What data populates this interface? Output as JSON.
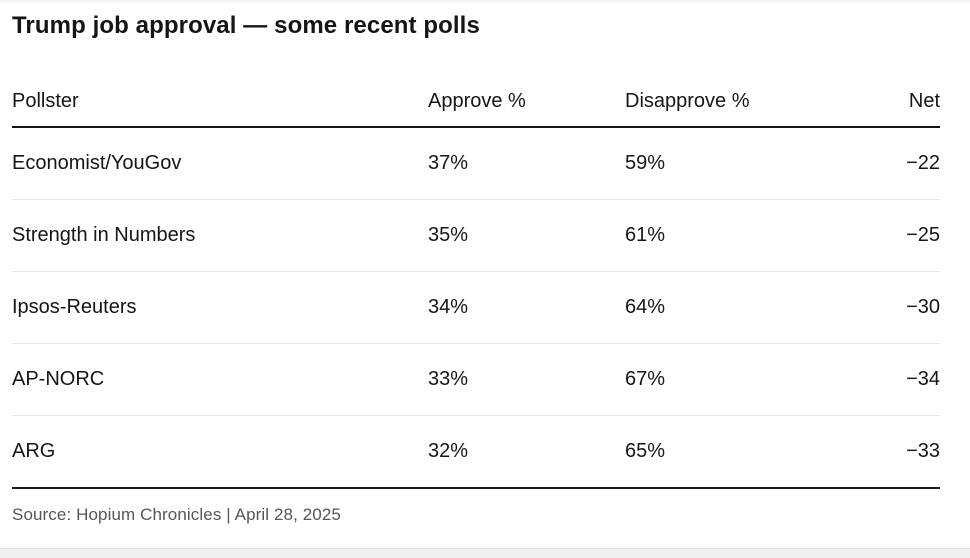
{
  "page": {
    "title": "Trump job approval — some recent polls",
    "source": "Source: Hopium Chronicles | April 28, 2025"
  },
  "table": {
    "columns": [
      "Pollster",
      "Approve %",
      "Disapprove %",
      "Net"
    ],
    "rows": [
      {
        "pollster": "Economist/YouGov",
        "approve": "37%",
        "disapprove": "59%",
        "net": "−22"
      },
      {
        "pollster": "Strength in Numbers",
        "approve": "35%",
        "disapprove": "61%",
        "net": "−25"
      },
      {
        "pollster": "Ipsos-Reuters",
        "approve": "34%",
        "disapprove": "64%",
        "net": "−30"
      },
      {
        "pollster": "AP-NORC",
        "approve": "33%",
        "disapprove": "67%",
        "net": "−34"
      },
      {
        "pollster": "ARG",
        "approve": "32%",
        "disapprove": "65%",
        "net": "−33"
      }
    ]
  },
  "chart_data": {
    "type": "table",
    "title": "Trump job approval — some recent polls",
    "columns": [
      "Pollster",
      "Approve %",
      "Disapprove %",
      "Net"
    ],
    "categories": [
      "Economist/YouGov",
      "Strength in Numbers",
      "Ipsos-Reuters",
      "AP-NORC",
      "ARG"
    ],
    "series": [
      {
        "name": "Approve %",
        "values": [
          37,
          35,
          34,
          33,
          32
        ]
      },
      {
        "name": "Disapprove %",
        "values": [
          59,
          61,
          64,
          67,
          65
        ]
      },
      {
        "name": "Net",
        "values": [
          -22,
          -25,
          -30,
          -34,
          -33
        ]
      }
    ],
    "source": "Source: Hopium Chronicles | April 28, 2025",
    "layout": {
      "grid": "horizontal-row-separators",
      "legend": "none"
    }
  },
  "colors": {
    "text": "#161616",
    "muted_text": "#565656",
    "heavy_rule": "#161616",
    "light_rule": "#e8e8e8",
    "background": "#ffffff",
    "bottom_band": "#f0f0f0"
  }
}
